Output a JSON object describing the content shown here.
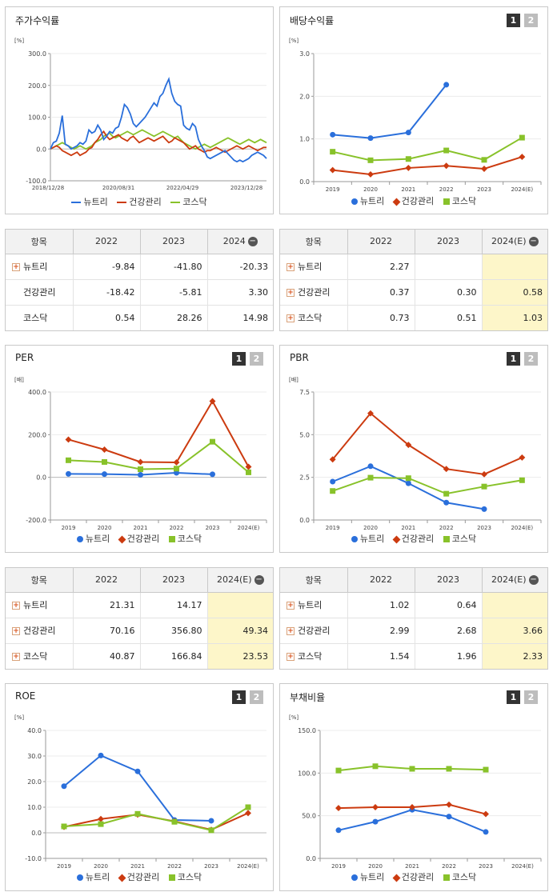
{
  "colors": {
    "nutri": "#2a6fdb",
    "health": "#cc3b10",
    "kosdaq": "#88c22a"
  },
  "legend": [
    "뉴트리",
    "건강관리",
    "코스닥"
  ],
  "buttons": {
    "b1": "1",
    "b2": "2"
  },
  "chart_data": [
    {
      "id": "stock",
      "type": "line",
      "title": "주가수익률",
      "unit": "[%]",
      "ylim": [
        -100,
        300
      ],
      "yticks": [
        "300.0",
        "200.0",
        "100.0",
        "0.0",
        "-100.0"
      ],
      "x_labels": [
        "2018/12/28",
        "2020/08/31",
        "2022/04/29",
        "2023/12/28"
      ],
      "series": [
        {
          "name": "뉴트리",
          "values": [
            0,
            20,
            25,
            50,
            105,
            15,
            10,
            0,
            5,
            10,
            20,
            15,
            25,
            60,
            50,
            55,
            75,
            60,
            30,
            40,
            55,
            50,
            65,
            70,
            100,
            140,
            130,
            110,
            80,
            70,
            80,
            90,
            100,
            115,
            130,
            145,
            135,
            165,
            175,
            200,
            220,
            175,
            150,
            140,
            135,
            75,
            65,
            60,
            80,
            70,
            30,
            10,
            -5,
            -25,
            -30,
            -25,
            -20,
            -15,
            -10,
            -5,
            -15,
            -25,
            -35,
            -40,
            -35,
            -40,
            -35,
            -30,
            -20,
            -15,
            -10,
            -15,
            -20,
            -30
          ]
        },
        {
          "name": "건강관리",
          "values": [
            0,
            5,
            10,
            5,
            -5,
            -10,
            -15,
            -20,
            -15,
            -10,
            -20,
            -15,
            -10,
            0,
            5,
            20,
            30,
            45,
            55,
            40,
            30,
            35,
            40,
            45,
            35,
            30,
            25,
            35,
            40,
            30,
            20,
            25,
            30,
            35,
            30,
            25,
            30,
            35,
            40,
            30,
            20,
            25,
            35,
            30,
            25,
            20,
            10,
            0,
            5,
            10,
            0,
            -5,
            -10,
            -5,
            -5,
            0,
            5,
            0,
            -5,
            -10,
            -5,
            0,
            5,
            10,
            5,
            0,
            5,
            10,
            5,
            0,
            -5,
            0,
            5,
            5
          ]
        },
        {
          "name": "코스닥",
          "values": [
            0,
            5,
            10,
            15,
            20,
            15,
            10,
            5,
            0,
            5,
            10,
            5,
            0,
            5,
            10,
            20,
            25,
            30,
            40,
            45,
            50,
            40,
            35,
            40,
            45,
            50,
            55,
            50,
            45,
            50,
            55,
            60,
            55,
            50,
            45,
            40,
            45,
            50,
            55,
            50,
            45,
            40,
            35,
            40,
            30,
            20,
            15,
            10,
            5,
            0,
            5,
            10,
            15,
            10,
            5,
            10,
            15,
            20,
            25,
            30,
            35,
            30,
            25,
            20,
            15,
            20,
            25,
            30,
            25,
            20,
            25,
            30,
            25,
            20
          ]
        }
      ]
    },
    {
      "id": "dividend",
      "type": "line",
      "title": "배당수익률",
      "unit": "[%]",
      "categories": [
        "2019",
        "2020",
        "2021",
        "2022",
        "2023",
        "2024(E)"
      ],
      "ylim": [
        0,
        3
      ],
      "yticks": [
        "3.0",
        "2.0",
        "1.0",
        "0.0"
      ],
      "series": [
        {
          "name": "뉴트리",
          "values": [
            1.1,
            1.02,
            1.15,
            2.27,
            null,
            null
          ]
        },
        {
          "name": "건강관리",
          "values": [
            0.27,
            0.17,
            0.32,
            0.37,
            0.3,
            0.58
          ]
        },
        {
          "name": "코스닥",
          "values": [
            0.7,
            0.5,
            0.53,
            0.73,
            0.51,
            1.03
          ]
        }
      ]
    },
    {
      "id": "per",
      "type": "line",
      "title": "PER",
      "unit": "[배]",
      "categories": [
        "2019",
        "2020",
        "2021",
        "2022",
        "2023",
        "2024(E)"
      ],
      "ylim": [
        -200,
        400
      ],
      "yticks": [
        "400.0",
        "200.0",
        "0.0",
        "-200.0"
      ],
      "series": [
        {
          "name": "뉴트리",
          "values": [
            16,
            15,
            12,
            21.31,
            14.17,
            null
          ]
        },
        {
          "name": "건강관리",
          "values": [
            177,
            130,
            72,
            70.16,
            356.8,
            49.34
          ]
        },
        {
          "name": "코스닥",
          "values": [
            80,
            72,
            38,
            40.87,
            166.84,
            23.53
          ]
        }
      ]
    },
    {
      "id": "pbr",
      "type": "line",
      "title": "PBR",
      "unit": "[배]",
      "categories": [
        "2019",
        "2020",
        "2021",
        "2022",
        "2023",
        "2024(E)"
      ],
      "ylim": [
        0,
        7.5
      ],
      "yticks": [
        "7.5",
        "5.0",
        "2.5",
        "0.0"
      ],
      "series": [
        {
          "name": "뉴트리",
          "values": [
            2.25,
            3.15,
            2.15,
            1.02,
            0.64,
            null
          ]
        },
        {
          "name": "건강관리",
          "values": [
            3.55,
            6.25,
            4.4,
            2.99,
            2.68,
            3.66
          ]
        },
        {
          "name": "코스닥",
          "values": [
            1.7,
            2.48,
            2.45,
            1.54,
            1.96,
            2.33
          ]
        }
      ]
    },
    {
      "id": "roe",
      "type": "line",
      "title": "ROE",
      "unit": "[%]",
      "categories": [
        "2019",
        "2020",
        "2021",
        "2022",
        "2023",
        "2024(E)"
      ],
      "ylim": [
        -10,
        40
      ],
      "yticks": [
        "40.0",
        "30.0",
        "20.0",
        "10.0",
        "0.0",
        "-10.0"
      ],
      "series": [
        {
          "name": "뉴트리",
          "values": [
            18.2,
            30.2,
            24.0,
            5.0,
            4.7,
            null
          ]
        },
        {
          "name": "건강관리",
          "values": [
            2.3,
            5.4,
            7.1,
            4.5,
            1.2,
            7.7
          ]
        },
        {
          "name": "코스닥",
          "values": [
            2.5,
            3.4,
            7.4,
            4.3,
            1.0,
            10.0
          ]
        }
      ]
    },
    {
      "id": "debt",
      "type": "line",
      "title": "부채비율",
      "unit": "[%]",
      "categories": [
        "2019",
        "2020",
        "2021",
        "2022",
        "2023",
        "2024(E)"
      ],
      "ylim": [
        0,
        150
      ],
      "yticks": [
        "150.0",
        "100.0",
        "50.0",
        "0.0"
      ],
      "series": [
        {
          "name": "뉴트리",
          "values": [
            33,
            43,
            57,
            49,
            31,
            null
          ]
        },
        {
          "name": "건강관리",
          "values": [
            59,
            60,
            60,
            63,
            52,
            null
          ]
        },
        {
          "name": "코스닥",
          "values": [
            103,
            108,
            105,
            105,
            104,
            null
          ]
        }
      ]
    }
  ],
  "tables": {
    "stock": {
      "headers": [
        "항목",
        "2022",
        "2023",
        "2024"
      ],
      "highlight_last": false,
      "rows": [
        {
          "label": "뉴트리",
          "plus": true,
          "values": [
            "-9.84",
            "-41.80",
            "-20.33"
          ]
        },
        {
          "label": "건강관리",
          "plus": false,
          "values": [
            "-18.42",
            "-5.81",
            "3.30"
          ]
        },
        {
          "label": "코스닥",
          "plus": false,
          "values": [
            "0.54",
            "28.26",
            "14.98"
          ]
        }
      ]
    },
    "dividend": {
      "headers": [
        "항목",
        "2022",
        "2023",
        "2024(E)"
      ],
      "highlight_last": true,
      "rows": [
        {
          "label": "뉴트리",
          "plus": true,
          "values": [
            "2.27",
            "",
            ""
          ]
        },
        {
          "label": "건강관리",
          "plus": true,
          "values": [
            "0.37",
            "0.30",
            "0.58"
          ]
        },
        {
          "label": "코스닥",
          "plus": true,
          "values": [
            "0.73",
            "0.51",
            "1.03"
          ]
        }
      ]
    },
    "per": {
      "headers": [
        "항목",
        "2022",
        "2023",
        "2024(E)"
      ],
      "highlight_last": true,
      "rows": [
        {
          "label": "뉴트리",
          "plus": true,
          "values": [
            "21.31",
            "14.17",
            ""
          ]
        },
        {
          "label": "건강관리",
          "plus": true,
          "values": [
            "70.16",
            "356.80",
            "49.34"
          ]
        },
        {
          "label": "코스닥",
          "plus": true,
          "values": [
            "40.87",
            "166.84",
            "23.53"
          ]
        }
      ]
    },
    "pbr": {
      "headers": [
        "항목",
        "2022",
        "2023",
        "2024(E)"
      ],
      "highlight_last": true,
      "rows": [
        {
          "label": "뉴트리",
          "plus": true,
          "values": [
            "1.02",
            "0.64",
            ""
          ]
        },
        {
          "label": "건강관리",
          "plus": true,
          "values": [
            "2.99",
            "2.68",
            "3.66"
          ]
        },
        {
          "label": "코스닥",
          "plus": true,
          "values": [
            "1.54",
            "1.96",
            "2.33"
          ]
        }
      ]
    }
  }
}
